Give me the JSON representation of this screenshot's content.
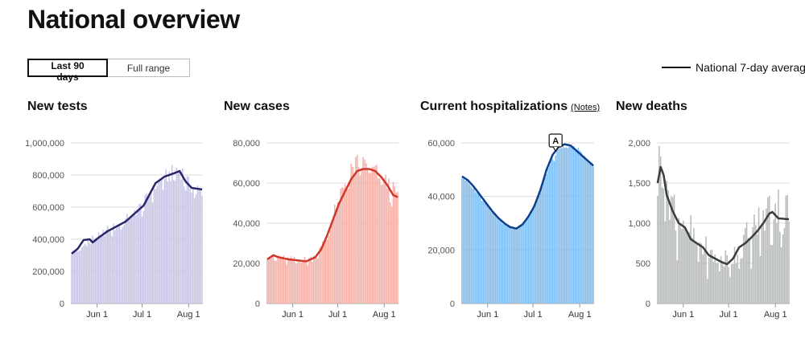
{
  "page": {
    "title": "National overview"
  },
  "range_toggle": {
    "options": [
      {
        "label": "Last 90 days",
        "active": true
      },
      {
        "label": "Full range",
        "active": false
      }
    ]
  },
  "legend": {
    "label": "National 7-day averag",
    "color": "#111111"
  },
  "charts": [
    {
      "title": "New tests",
      "bar_color": "#c9c6e6",
      "line_color": "#29276b",
      "ylim": [
        0,
        1000000
      ],
      "y_ticks": [
        {
          "value": 0,
          "label": "0"
        },
        {
          "value": 200000,
          "label": "200,000"
        },
        {
          "value": 400000,
          "label": "400,000"
        },
        {
          "value": 600000,
          "label": "600,000"
        },
        {
          "value": 800000,
          "label": "800,000"
        },
        {
          "value": 1000000,
          "label": "1,000,000"
        }
      ],
      "x_ticks": [
        {
          "day": 17,
          "label": "Jun 1"
        },
        {
          "day": 47,
          "label": "Jul 1"
        },
        {
          "day": 78,
          "label": "Aug 1"
        }
      ],
      "anchors": [
        [
          0,
          310000
        ],
        [
          6,
          335000
        ],
        [
          12,
          390000
        ],
        [
          18,
          410000
        ],
        [
          24,
          450000
        ],
        [
          30,
          470000
        ],
        [
          36,
          510000
        ],
        [
          42,
          560000
        ],
        [
          48,
          610000
        ],
        [
          54,
          700000
        ],
        [
          60,
          760000
        ],
        [
          66,
          790000
        ],
        [
          70,
          820000
        ],
        [
          74,
          800000
        ],
        [
          78,
          730000
        ],
        [
          82,
          700000
        ],
        [
          87,
          690000
        ]
      ],
      "avg_anchors": [
        [
          0,
          310000
        ],
        [
          4,
          340000
        ],
        [
          8,
          395000
        ],
        [
          12,
          400000
        ],
        [
          14,
          380000
        ],
        [
          18,
          410000
        ],
        [
          24,
          450000
        ],
        [
          30,
          480000
        ],
        [
          36,
          510000
        ],
        [
          42,
          560000
        ],
        [
          48,
          610000
        ],
        [
          52,
          680000
        ],
        [
          56,
          750000
        ],
        [
          62,
          790000
        ],
        [
          68,
          810000
        ],
        [
          72,
          825000
        ],
        [
          76,
          760000
        ],
        [
          80,
          720000
        ],
        [
          87,
          710000
        ]
      ],
      "amplitude": 0.08
    },
    {
      "title": "New cases",
      "bar_color": "#f6b1a8",
      "line_color": "#d0362a",
      "ylim": [
        0,
        80000
      ],
      "y_ticks": [
        {
          "value": 0,
          "label": "0"
        },
        {
          "value": 20000,
          "label": "20,000"
        },
        {
          "value": 40000,
          "label": "40,000"
        },
        {
          "value": 60000,
          "label": "60,000"
        },
        {
          "value": 80000,
          "label": "80,000"
        }
      ],
      "x_ticks": [
        {
          "day": 17,
          "label": "Jun 1"
        },
        {
          "day": 47,
          "label": "Jul 1"
        },
        {
          "day": 78,
          "label": "Aug 1"
        }
      ],
      "anchors": [
        [
          0,
          23000
        ],
        [
          10,
          22000
        ],
        [
          20,
          21000
        ],
        [
          30,
          22000
        ],
        [
          36,
          27000
        ],
        [
          42,
          38000
        ],
        [
          48,
          52000
        ],
        [
          54,
          62000
        ],
        [
          60,
          68000
        ],
        [
          66,
          68000
        ],
        [
          72,
          64000
        ],
        [
          78,
          60000
        ],
        [
          84,
          55000
        ],
        [
          87,
          53000
        ]
      ],
      "avg_anchors": [
        [
          0,
          22000
        ],
        [
          4,
          24000
        ],
        [
          8,
          23000
        ],
        [
          14,
          22000
        ],
        [
          20,
          21500
        ],
        [
          26,
          21000
        ],
        [
          32,
          23000
        ],
        [
          36,
          27000
        ],
        [
          40,
          34000
        ],
        [
          44,
          42000
        ],
        [
          48,
          50000
        ],
        [
          52,
          56000
        ],
        [
          56,
          62000
        ],
        [
          60,
          66000
        ],
        [
          64,
          67000
        ],
        [
          68,
          67000
        ],
        [
          72,
          66000
        ],
        [
          76,
          63000
        ],
        [
          80,
          59000
        ],
        [
          84,
          54000
        ],
        [
          87,
          53000
        ]
      ],
      "amplitude": 0.1
    },
    {
      "title": "Current hospitalizations",
      "notes_label": "(Notes)",
      "annotation": "A",
      "bar_color": "#7fbef2",
      "line_color": "#0d3f8c",
      "ylim": [
        0,
        60000
      ],
      "y_ticks": [
        {
          "value": 0,
          "label": "0"
        },
        {
          "value": 20000,
          "label": "20,000"
        },
        {
          "value": 40000,
          "label": "40,000"
        },
        {
          "value": 60000,
          "label": "60,000"
        }
      ],
      "x_ticks": [
        {
          "day": 17,
          "label": "Jun 1"
        },
        {
          "day": 47,
          "label": "Jul 1"
        },
        {
          "day": 78,
          "label": "Aug 1"
        }
      ],
      "anchors": [
        [
          0,
          47000
        ],
        [
          6,
          44000
        ],
        [
          12,
          40000
        ],
        [
          18,
          36000
        ],
        [
          24,
          32000
        ],
        [
          30,
          29000
        ],
        [
          36,
          28000
        ],
        [
          42,
          31000
        ],
        [
          48,
          37000
        ],
        [
          54,
          46000
        ],
        [
          60,
          54000
        ],
        [
          66,
          58000
        ],
        [
          72,
          59000
        ],
        [
          78,
          57000
        ],
        [
          84,
          53000
        ],
        [
          87,
          51000
        ]
      ],
      "avg_anchors": [
        [
          0,
          47500
        ],
        [
          4,
          46000
        ],
        [
          8,
          43500
        ],
        [
          12,
          40500
        ],
        [
          16,
          37500
        ],
        [
          20,
          34500
        ],
        [
          24,
          32000
        ],
        [
          28,
          30000
        ],
        [
          32,
          28500
        ],
        [
          36,
          28000
        ],
        [
          40,
          29500
        ],
        [
          44,
          32500
        ],
        [
          48,
          36500
        ],
        [
          52,
          42500
        ],
        [
          56,
          50000
        ],
        [
          60,
          55500
        ],
        [
          64,
          58500
        ],
        [
          68,
          59500
        ],
        [
          72,
          59000
        ],
        [
          76,
          57000
        ],
        [
          80,
          55000
        ],
        [
          84,
          53000
        ],
        [
          87,
          51500
        ]
      ],
      "amplitude": 0.02
    },
    {
      "title": "New deaths",
      "bar_color": "#b9bcbc",
      "line_color": "#3a3d3d",
      "ylim": [
        0,
        2000
      ],
      "y_ticks": [
        {
          "value": 0,
          "label": "0"
        },
        {
          "value": 500,
          "label": "500"
        },
        {
          "value": 1000,
          "label": "1,000"
        },
        {
          "value": 1500,
          "label": "1,500"
        },
        {
          "value": 2000,
          "label": "2,000"
        }
      ],
      "x_ticks": [
        {
          "day": 17,
          "label": "Jun 1"
        },
        {
          "day": 47,
          "label": "Jul 1"
        },
        {
          "day": 78,
          "label": "Aug 1"
        }
      ],
      "anchors": [
        [
          0,
          1450
        ],
        [
          3,
          1750
        ],
        [
          7,
          1350
        ],
        [
          12,
          1050
        ],
        [
          18,
          950
        ],
        [
          24,
          750
        ],
        [
          30,
          650
        ],
        [
          36,
          550
        ],
        [
          42,
          520
        ],
        [
          48,
          500
        ],
        [
          54,
          650
        ],
        [
          60,
          780
        ],
        [
          66,
          900
        ],
        [
          72,
          1050
        ],
        [
          76,
          1150
        ],
        [
          80,
          1100
        ],
        [
          87,
          1050
        ]
      ],
      "avg_anchors": [
        [
          0,
          1500
        ],
        [
          2,
          1700
        ],
        [
          4,
          1600
        ],
        [
          6,
          1350
        ],
        [
          10,
          1150
        ],
        [
          14,
          1000
        ],
        [
          18,
          950
        ],
        [
          22,
          800
        ],
        [
          26,
          750
        ],
        [
          30,
          700
        ],
        [
          34,
          600
        ],
        [
          38,
          560
        ],
        [
          42,
          520
        ],
        [
          46,
          490
        ],
        [
          50,
          560
        ],
        [
          54,
          700
        ],
        [
          58,
          750
        ],
        [
          62,
          820
        ],
        [
          66,
          900
        ],
        [
          70,
          1000
        ],
        [
          74,
          1120
        ],
        [
          76,
          1140
        ],
        [
          80,
          1060
        ],
        [
          87,
          1050
        ]
      ],
      "amplitude": 0.35
    }
  ]
}
